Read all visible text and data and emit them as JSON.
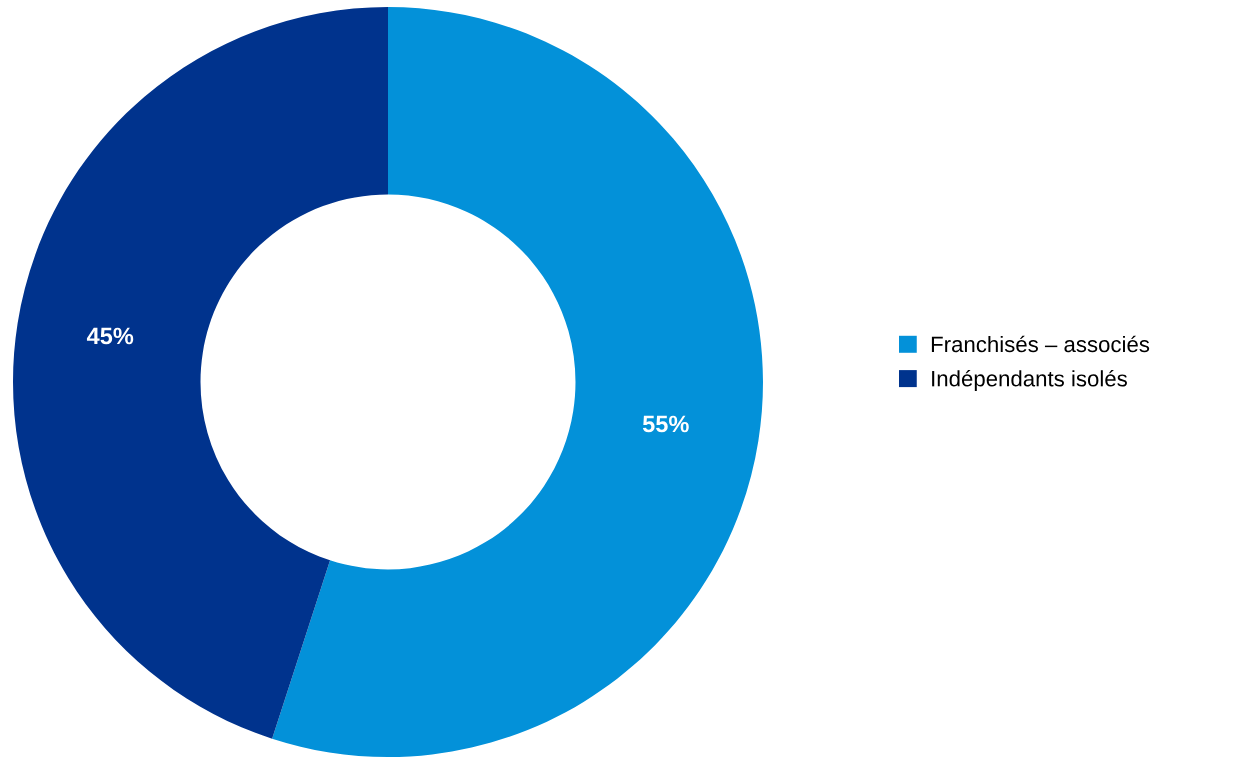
{
  "chart_data": {
    "type": "donut",
    "categories": [
      "Franchisés – associés",
      "Indépendants isolés"
    ],
    "values": [
      55,
      45
    ],
    "colors": [
      "#0391d9",
      "#00338d"
    ],
    "value_labels": [
      "55%",
      "45%"
    ],
    "legend": "right"
  }
}
